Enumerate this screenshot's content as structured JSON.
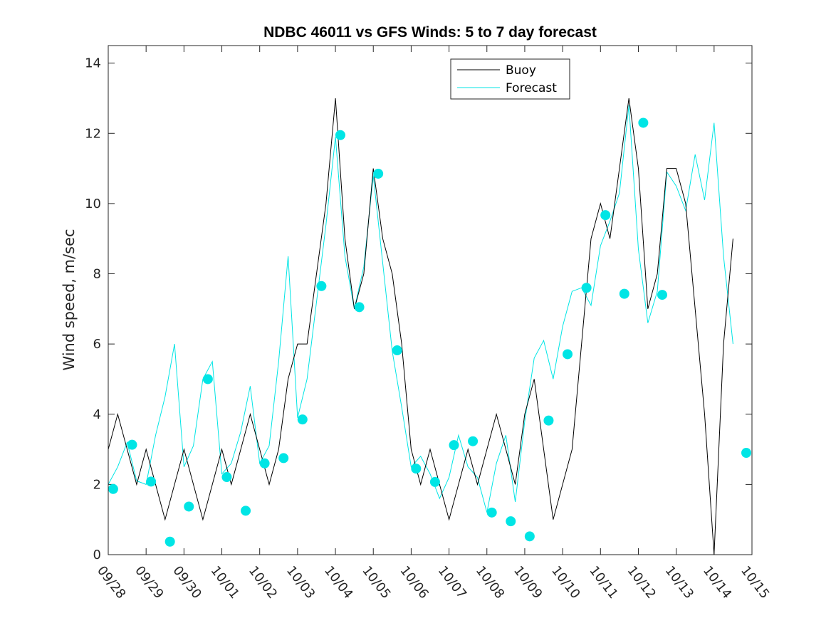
{
  "chart_data": {
    "type": "line",
    "title": "NDBC 46011 vs GFS Winds: 5 to 7 day forecast",
    "xlabel": "",
    "ylabel": "Wind speed, m/sec",
    "xlim": [
      0,
      17
    ],
    "ylim": [
      0,
      14.5
    ],
    "x_ticks": [
      0,
      1,
      2,
      3,
      4,
      5,
      6,
      7,
      8,
      9,
      10,
      11,
      12,
      13,
      14,
      15,
      16,
      17
    ],
    "x_tick_labels": [
      "09/28",
      "09/29",
      "09/30",
      "10/01",
      "10/02",
      "10/03",
      "10/04",
      "10/05",
      "10/06",
      "10/07",
      "10/08",
      "10/09",
      "10/10",
      "10/11",
      "10/12",
      "10/13",
      "10/14",
      "10/15"
    ],
    "y_ticks": [
      0,
      2,
      4,
      6,
      8,
      10,
      12,
      14
    ],
    "y_tick_labels": [
      "0",
      "2",
      "4",
      "6",
      "8",
      "10",
      "12",
      "14"
    ],
    "legend": {
      "position": "top-center",
      "entries": [
        "Buoy",
        "Forecast"
      ]
    },
    "colors": {
      "buoy": "#000000",
      "forecast": "#00e5e5"
    },
    "series": [
      {
        "name": "Buoy",
        "x": [
          0,
          0.25,
          0.5,
          0.75,
          1,
          1.25,
          1.5,
          1.75,
          2,
          2.25,
          2.5,
          2.75,
          3,
          3.25,
          3.5,
          3.75,
          4,
          4.25,
          4.5,
          4.75,
          5,
          5.25,
          5.5,
          5.75,
          6,
          6.25,
          6.5,
          6.75,
          7,
          7.25,
          7.5,
          7.75,
          8,
          8.25,
          8.5,
          8.75,
          9,
          9.25,
          9.5,
          9.75,
          10,
          10.25,
          10.5,
          10.75,
          11,
          11.25,
          11.5,
          11.75,
          12,
          12.25,
          12.5,
          12.75,
          13,
          13.25,
          13.5,
          13.75,
          14,
          14.25,
          14.5,
          14.75,
          15,
          15.25,
          15.5,
          15.75,
          16,
          16.25,
          16.5
        ],
        "y": [
          3,
          4,
          3,
          2,
          3,
          2,
          1,
          2,
          3,
          2,
          1,
          2,
          3,
          2,
          3,
          4,
          3,
          2,
          3,
          5,
          6,
          6,
          8,
          10,
          13,
          9,
          7,
          8,
          11,
          9,
          8,
          6,
          3,
          2,
          3,
          2,
          1,
          2,
          3,
          2,
          3,
          4,
          3,
          2,
          4,
          5,
          3,
          1,
          2,
          3,
          6,
          9,
          10,
          9,
          11,
          13,
          11,
          7,
          8,
          11,
          11,
          10,
          7,
          4,
          0,
          6,
          9
        ]
      },
      {
        "name": "Forecast",
        "x": [
          0,
          0.25,
          0.5,
          0.75,
          1,
          1.25,
          1.5,
          1.75,
          2,
          2.25,
          2.5,
          2.75,
          3,
          3.25,
          3.5,
          3.75,
          4,
          4.25,
          4.5,
          4.75,
          5,
          5.25,
          5.5,
          5.75,
          6,
          6.25,
          6.5,
          6.75,
          7,
          7.25,
          7.5,
          7.75,
          8,
          8.25,
          8.5,
          8.75,
          9,
          9.25,
          9.5,
          9.75,
          10,
          10.25,
          10.5,
          10.75,
          11,
          11.25,
          11.5,
          11.75,
          12,
          12.25,
          12.5,
          12.75,
          13,
          13.25,
          13.5,
          13.75,
          14,
          14.25,
          14.5,
          14.75,
          15,
          15.25,
          15.5,
          15.75,
          16,
          16.25,
          16.5
        ],
        "y": [
          2,
          2.5,
          3.2,
          2.1,
          2,
          3.4,
          4.5,
          6,
          2.5,
          3.1,
          5,
          5.5,
          2.3,
          2.6,
          3.5,
          4.8,
          2.6,
          3.1,
          5.5,
          8.5,
          3.9,
          5,
          7.2,
          9.4,
          11.9,
          8.5,
          7,
          8.2,
          10.8,
          8.3,
          5.8,
          4.2,
          2.5,
          2.8,
          2.3,
          1.6,
          2.2,
          3.4,
          2.5,
          2.2,
          1.2,
          2.6,
          3.4,
          1.5,
          3.8,
          5.6,
          6.1,
          5,
          6.5,
          7.5,
          7.6,
          7.1,
          8.8,
          9.5,
          10.3,
          12.8,
          8.7,
          6.6,
          7.5,
          10.9,
          10.5,
          9.8,
          11.4,
          10.1,
          12.3,
          8.5,
          6
        ]
      }
    ],
    "forecast_markers": {
      "x": [
        0.13,
        0.63,
        1.13,
        1.63,
        2.13,
        2.63,
        3.13,
        3.63,
        4.13,
        4.63,
        5.13,
        5.63,
        6.13,
        6.63,
        7.13,
        7.63,
        8.13,
        8.63,
        9.13,
        9.63,
        10.13,
        10.63,
        11.13,
        11.63,
        12.13,
        12.63,
        13.13,
        13.63,
        14.13,
        14.63,
        16.85
      ],
      "y": [
        1.87,
        3.13,
        2.08,
        0.37,
        1.37,
        5.0,
        2.21,
        1.25,
        2.6,
        2.75,
        3.85,
        7.65,
        11.95,
        7.05,
        10.85,
        5.82,
        2.45,
        2.07,
        3.12,
        3.23,
        1.2,
        0.95,
        0.52,
        3.82,
        5.71,
        7.6,
        9.67,
        7.43,
        12.3,
        7.4,
        2.9
      ]
    }
  }
}
